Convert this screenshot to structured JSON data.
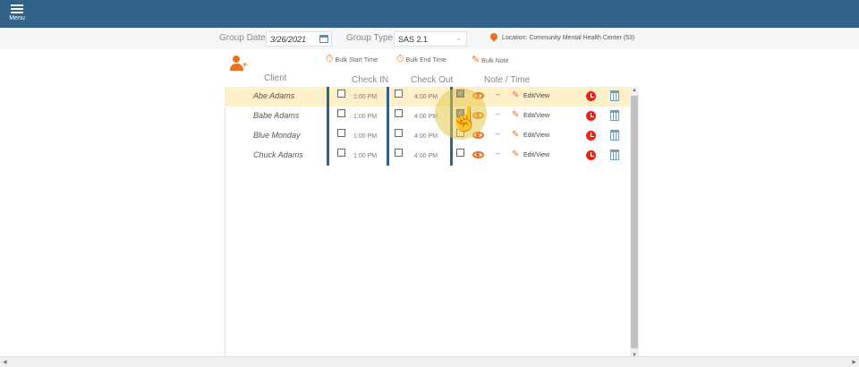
{
  "menu": {
    "label": "Menu"
  },
  "filter": {
    "group_date_label": "Group Date:",
    "group_date": "3/26/2021",
    "group_type_label": "Group Type:",
    "group_type": "SAS 2.1",
    "location": "Location: Community Mental Health Center (53)"
  },
  "tools": {
    "bulk_start": "Bulk Start Time",
    "bulk_end": "Bulk End Time",
    "bulk_note": "Bulk Note"
  },
  "headers": {
    "client": "Client",
    "check_in": "Check IN",
    "check_out": "Check Out",
    "note_time": "Note / Time"
  },
  "rows": [
    {
      "name": "Abe Adams",
      "in_checked": false,
      "in_time": "1:00 PM",
      "out_checked": false,
      "out_time": "4:00 PM",
      "note_checked": true,
      "note": "--",
      "edit": "Edit/View",
      "selected": true
    },
    {
      "name": "Babe Adams",
      "in_checked": false,
      "in_time": "1:00 PM",
      "out_checked": false,
      "out_time": "4:00 PM",
      "note_checked": true,
      "note": "--",
      "edit": "Edit/View",
      "selected": false
    },
    {
      "name": "Blue  Monday",
      "in_checked": false,
      "in_time": "1:00 PM",
      "out_checked": false,
      "out_time": "4:00 PM",
      "note_checked": false,
      "note": "--",
      "edit": "Edit/View",
      "selected": false
    },
    {
      "name": "Chuck Adams",
      "in_checked": false,
      "in_time": "1:00 PM",
      "out_checked": false,
      "out_time": "4:00 PM",
      "note_checked": false,
      "note": "--",
      "edit": "Edit/View",
      "selected": false
    }
  ],
  "colors": {
    "header": "#336289",
    "accent": "#f07020",
    "selected_row": "#fdefc8",
    "clock": "#ee2211"
  }
}
